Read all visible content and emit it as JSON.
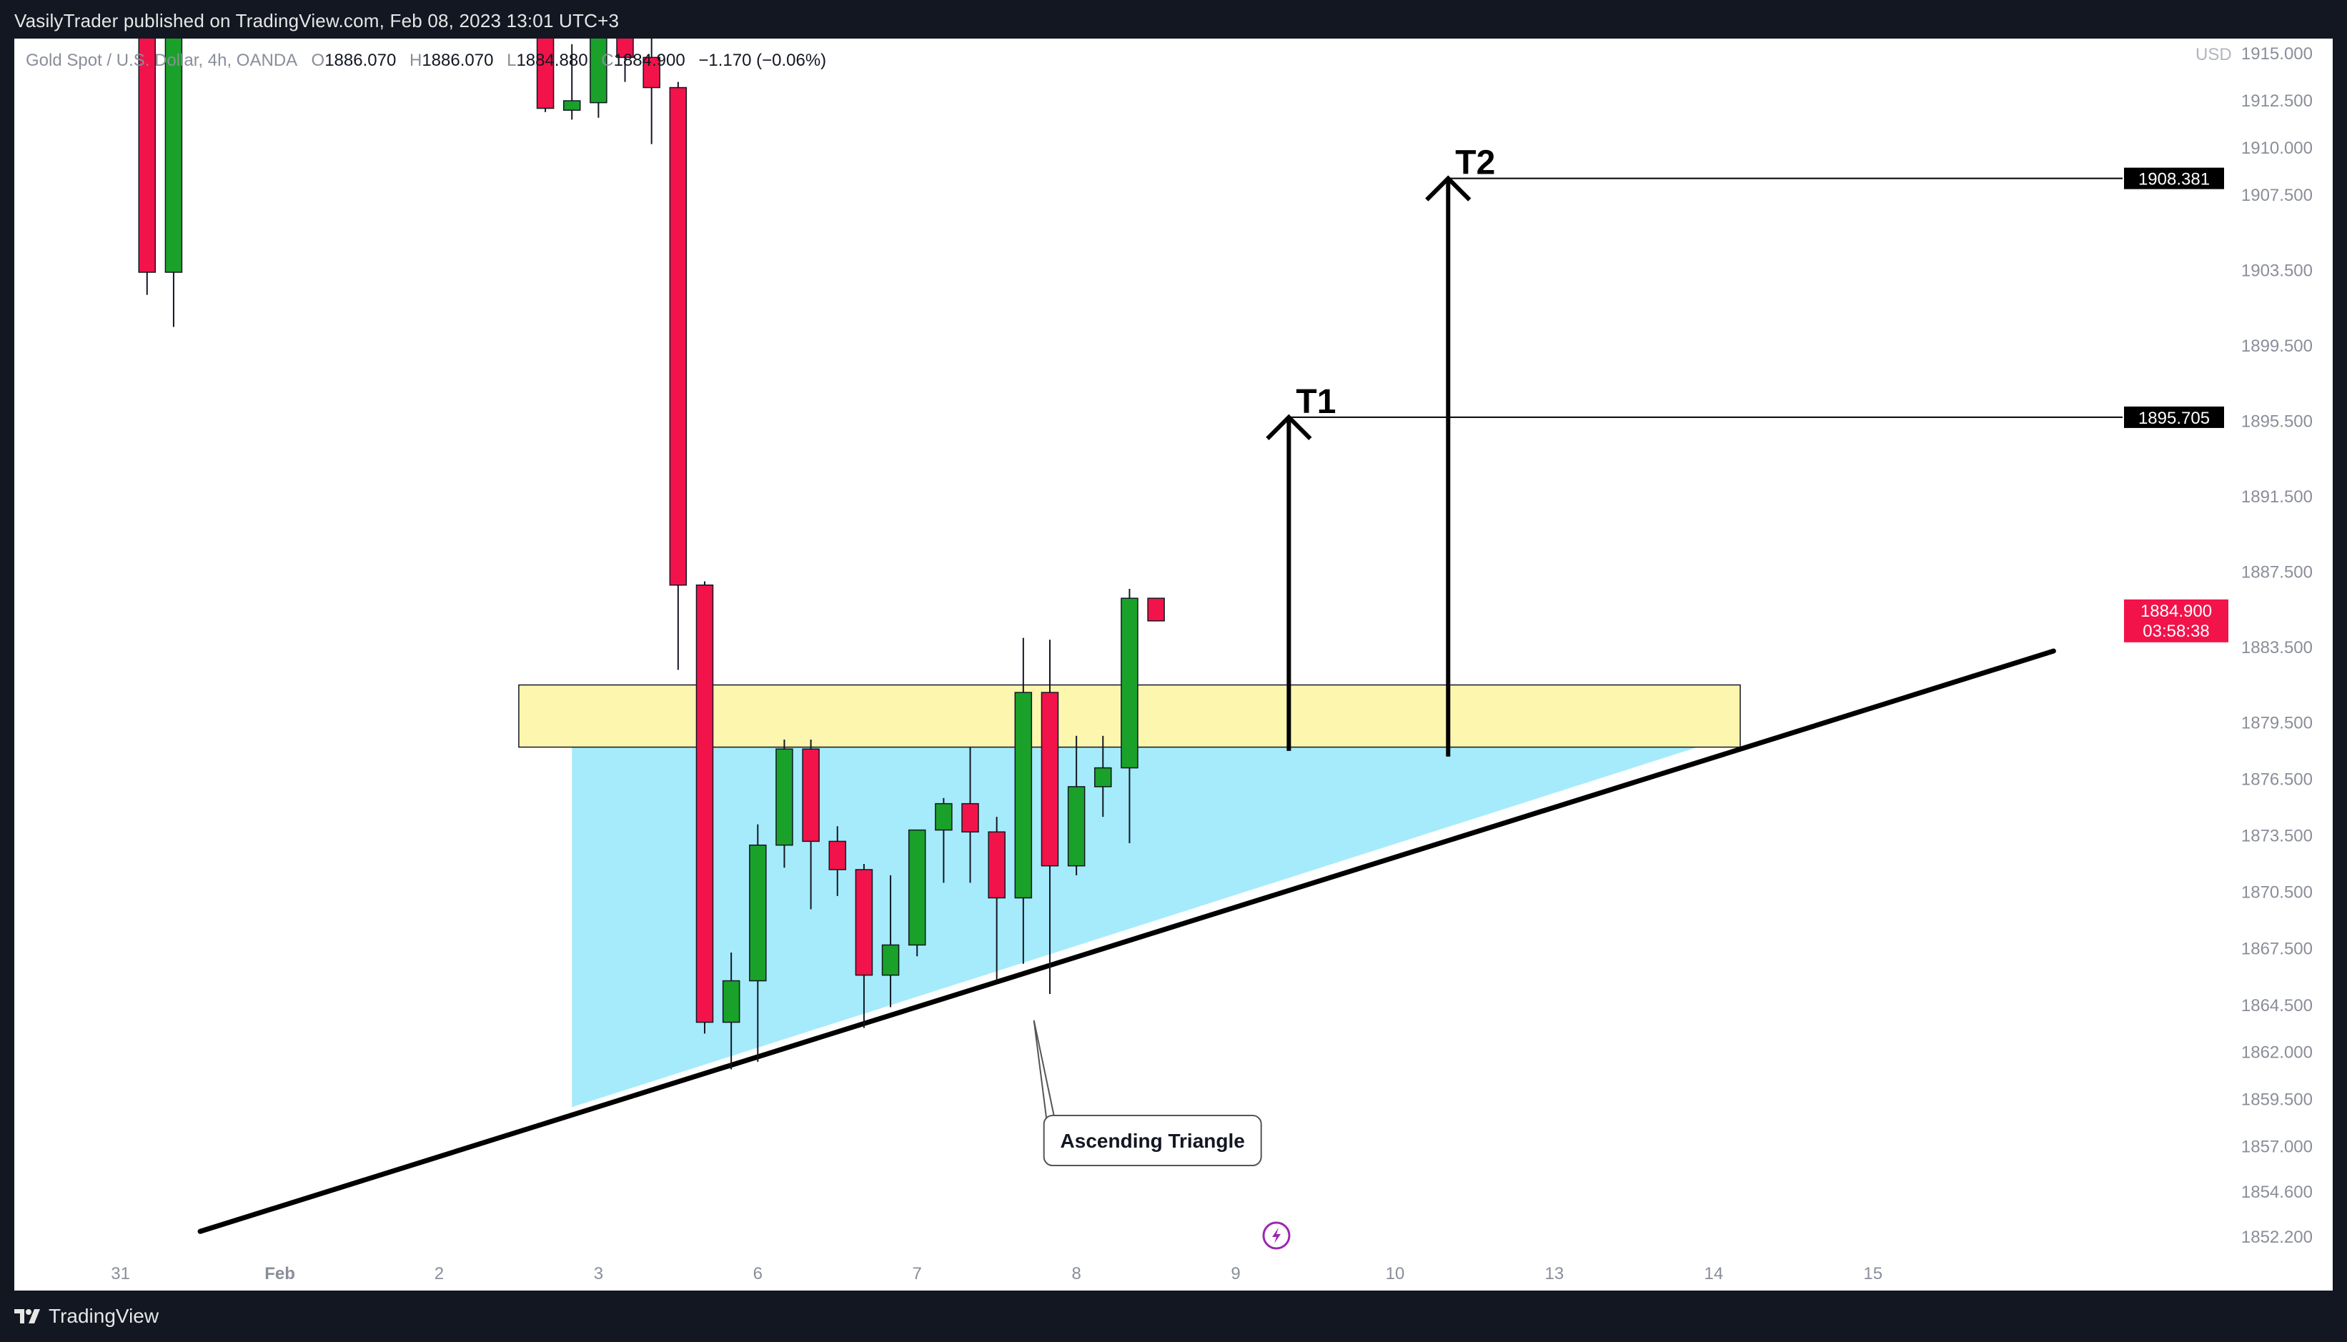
{
  "publish_line": "VasilyTrader published on TradingView.com, Feb 08, 2023 13:01 UTC+3",
  "footer_brand": "TradingView",
  "colors": {
    "bull": "#1aa12a",
    "bear": "#f2134a",
    "zone_fill": "#fbf4a0",
    "triangle_fill": "#a6ebfb",
    "frame": "#131722",
    "price_tag": "#f2134a"
  },
  "chart_data": {
    "type": "candlestick",
    "symbol_line": {
      "symbol": "Gold Spot / U.S. Dollar, 4h, OANDA",
      "o_label": "O",
      "o_value": "1886.070",
      "h_label": "H",
      "h_value": "1886.070",
      "l_label": "L",
      "l_value": "1884.880",
      "c_label": "C",
      "c_value": "1884.900",
      "change": "−1.170 (−0.06%)"
    },
    "currency": "USD",
    "ylim": [
      1850.5,
      1915.8
    ],
    "xlim": [
      -0.5,
      39.2
    ],
    "y_ticks": [
      "1852.200",
      "1854.600",
      "1857.000",
      "1859.500",
      "1862.000",
      "1864.500",
      "1867.500",
      "1870.500",
      "1873.500",
      "1876.500",
      "1879.500",
      "1883.500",
      "1887.500",
      "1891.500",
      "1895.500",
      "1899.500",
      "1903.500",
      "1907.500",
      "1910.000",
      "1912.500",
      "1915.000"
    ],
    "x_ticks": [
      {
        "label": "31",
        "x": 1.5
      },
      {
        "label": "Feb",
        "x": 4.5
      },
      {
        "label": "2",
        "x": 7.5
      },
      {
        "label": "3",
        "x": 10.5
      },
      {
        "label": "6",
        "x": 13.5
      },
      {
        "label": "7",
        "x": 16.5
      },
      {
        "label": "8",
        "x": 19.5
      },
      {
        "label": "9",
        "x": 22.5
      },
      {
        "label": "10",
        "x": 25.5
      },
      {
        "label": "13",
        "x": 28.5
      },
      {
        "label": "14",
        "x": 31.5
      },
      {
        "label": "15",
        "x": 34.5
      }
    ],
    "candles": [
      {
        "x": 2.0,
        "o": 1916.5,
        "h": 1918.0,
        "l": 1902.2,
        "c": 1903.4
      },
      {
        "x": 2.5,
        "o": 1903.4,
        "h": 1917.0,
        "l": 1900.5,
        "c": 1916.5
      },
      {
        "x": 9.5,
        "o": 1916.0,
        "h": 1918.0,
        "l": 1911.9,
        "c": 1912.1
      },
      {
        "x": 10.0,
        "o": 1912.0,
        "h": 1915.5,
        "l": 1911.5,
        "c": 1912.5
      },
      {
        "x": 10.5,
        "o": 1912.4,
        "h": 1916.5,
        "l": 1911.6,
        "c": 1916.0
      },
      {
        "x": 11.0,
        "o": 1916.0,
        "h": 1917.0,
        "l": 1913.5,
        "c": 1914.8
      },
      {
        "x": 11.5,
        "o": 1914.8,
        "h": 1916.0,
        "l": 1910.2,
        "c": 1913.2
      },
      {
        "x": 12.0,
        "o": 1913.2,
        "h": 1913.5,
        "l": 1882.3,
        "c": 1886.8
      },
      {
        "x": 12.5,
        "o": 1886.8,
        "h": 1887.0,
        "l": 1863.0,
        "c": 1863.6
      },
      {
        "x": 13.0,
        "o": 1863.6,
        "h": 1867.3,
        "l": 1861.1,
        "c": 1865.8
      },
      {
        "x": 13.5,
        "o": 1865.8,
        "h": 1874.1,
        "l": 1861.5,
        "c": 1873.0
      },
      {
        "x": 14.0,
        "o": 1873.0,
        "h": 1878.6,
        "l": 1871.8,
        "c": 1878.1
      },
      {
        "x": 14.5,
        "o": 1878.1,
        "h": 1878.6,
        "l": 1869.6,
        "c": 1873.2
      },
      {
        "x": 15.0,
        "o": 1873.2,
        "h": 1874.0,
        "l": 1870.3,
        "c": 1871.7
      },
      {
        "x": 15.5,
        "o": 1871.7,
        "h": 1872.0,
        "l": 1863.3,
        "c": 1866.1
      },
      {
        "x": 16.0,
        "o": 1866.1,
        "h": 1871.4,
        "l": 1864.4,
        "c": 1867.7
      },
      {
        "x": 16.5,
        "o": 1867.7,
        "h": 1873.8,
        "l": 1867.1,
        "c": 1873.8
      },
      {
        "x": 17.0,
        "o": 1873.8,
        "h": 1875.5,
        "l": 1871.0,
        "c": 1875.2
      },
      {
        "x": 17.5,
        "o": 1875.2,
        "h": 1878.2,
        "l": 1871.0,
        "c": 1873.7
      },
      {
        "x": 18.0,
        "o": 1873.7,
        "h": 1874.5,
        "l": 1865.8,
        "c": 1870.2
      },
      {
        "x": 18.5,
        "o": 1870.2,
        "h": 1884.0,
        "l": 1866.7,
        "c": 1881.1
      },
      {
        "x": 19.0,
        "o": 1881.1,
        "h": 1883.9,
        "l": 1865.1,
        "c": 1871.9
      },
      {
        "x": 19.5,
        "o": 1871.9,
        "h": 1878.8,
        "l": 1871.4,
        "c": 1876.1
      },
      {
        "x": 20.0,
        "o": 1876.1,
        "h": 1878.8,
        "l": 1874.5,
        "c": 1877.1
      },
      {
        "x": 20.5,
        "o": 1877.1,
        "h": 1886.6,
        "l": 1873.1,
        "c": 1886.1
      },
      {
        "x": 21.0,
        "o": 1886.1,
        "h": 1886.1,
        "l": 1884.9,
        "c": 1884.9
      }
    ],
    "trendline": {
      "x1": 3.0,
      "y1": 1852.5,
      "x2": 37.9,
      "y2": 1883.3
    },
    "resistance_zone": {
      "x1": 9.0,
      "x2": 32.0,
      "y_top": 1881.5,
      "y_bottom": 1878.2
    },
    "triangle_fill": {
      "x_start": 10.0,
      "y_start": 1859.1,
      "x_end": 31.2,
      "y_flat": 1878.2
    },
    "annotation": {
      "label": "Ascending Triangle",
      "anchor_x": 18.7,
      "anchor_y": 1863.7
    },
    "targets": [
      {
        "label": "T1",
        "x": 23.5,
        "y_from": 1878.0,
        "y_to": 1895.705,
        "price": "1895.705"
      },
      {
        "label": "T2",
        "x": 26.5,
        "y_from": 1877.7,
        "y_to": 1908.381,
        "price": "1908.381"
      }
    ],
    "last_price": {
      "value": 1884.9,
      "label": "1884.900",
      "countdown": "03:58:38"
    }
  }
}
